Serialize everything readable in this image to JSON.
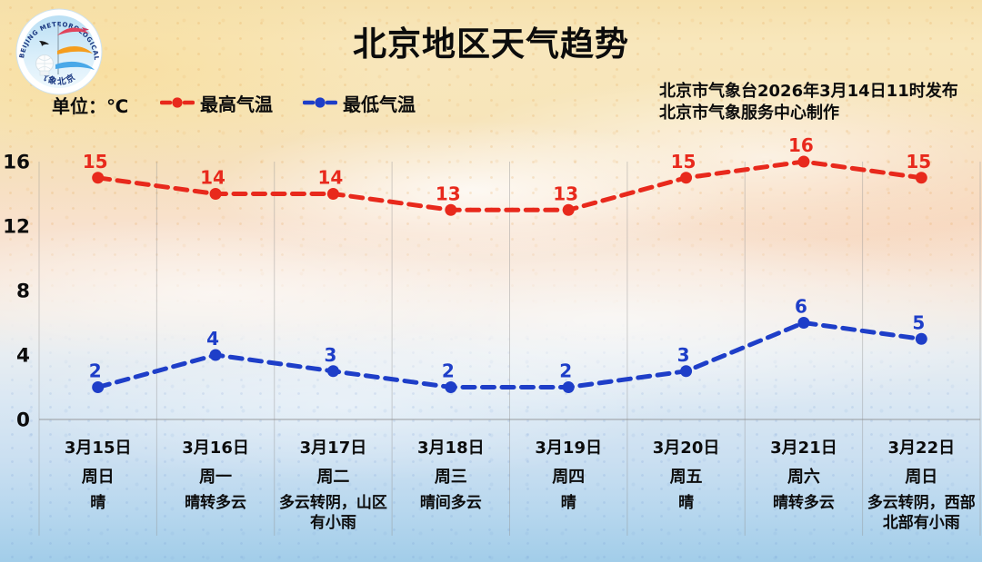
{
  "header": {
    "title": "北京地区天气趋势",
    "issued_line1": "北京市气象台2026年3月14日11时发布",
    "issued_line2": "北京市气象服务中心制作",
    "unit_label": "单位：℃"
  },
  "logo": {
    "arc_text_top": "BEIJING METEOROLOGICAL SERVICE",
    "arc_text_bottom": "气象北京"
  },
  "legend": [
    {
      "label": "最高气温",
      "color": "#e8291c"
    },
    {
      "label": "最低气温",
      "color": "#1e3ec8"
    }
  ],
  "colors": {
    "max_temp": "#e8291c",
    "min_temp": "#1e3ec8",
    "text": "#0c0c0c",
    "gridline": "#8e8e8e"
  },
  "chart_data": {
    "type": "line",
    "title": "北京地区天气趋势",
    "unit": "℃",
    "categories": [
      "3月15日",
      "3月16日",
      "3月17日",
      "3月18日",
      "3月19日",
      "3月20日",
      "3月21日",
      "3月22日"
    ],
    "weekdays": [
      "周日",
      "周一",
      "周二",
      "周三",
      "周四",
      "周五",
      "周六",
      "周日"
    ],
    "weather": [
      "晴",
      "晴转多云",
      "多云转阴，山区有小雨",
      "晴间多云",
      "晴",
      "晴",
      "晴转多云",
      "多云转阴，西部北部有小雨"
    ],
    "series": [
      {
        "name": "最高气温",
        "color": "#e8291c",
        "style": "dashed",
        "values": [
          15,
          14,
          14,
          13,
          13,
          15,
          16,
          15
        ]
      },
      {
        "name": "最低气温",
        "color": "#1e3ec8",
        "style": "dashed",
        "values": [
          2,
          4,
          3,
          2,
          2,
          3,
          6,
          5
        ]
      }
    ],
    "yticks": [
      0,
      4,
      8,
      12,
      16
    ],
    "ylim": [
      0,
      16
    ],
    "grid": "vertical",
    "point_labels": true,
    "legend_position": "top-left"
  }
}
